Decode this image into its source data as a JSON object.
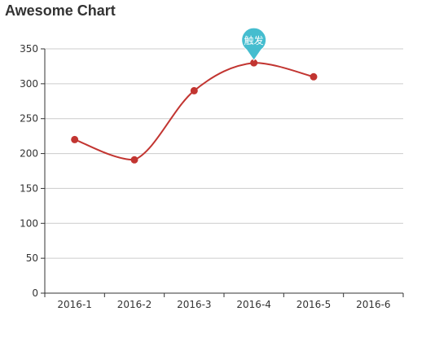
{
  "chart_data": {
    "type": "line",
    "title": "Awesome Chart",
    "smooth": true,
    "categories": [
      "2016-1",
      "2016-2",
      "2016-3",
      "2016-4",
      "2016-5",
      "2016-6"
    ],
    "series": [
      {
        "values": [
          220,
          191,
          290,
          330,
          310,
          null
        ],
        "color": "#c23531"
      }
    ],
    "ylim": [
      0,
      350
    ],
    "yticks": [
      0,
      50,
      100,
      150,
      200,
      250,
      300,
      350
    ],
    "grid": true,
    "markPoint": {
      "category": "2016-4",
      "value": 330,
      "label": "触发",
      "color": "#3cbacd"
    }
  }
}
